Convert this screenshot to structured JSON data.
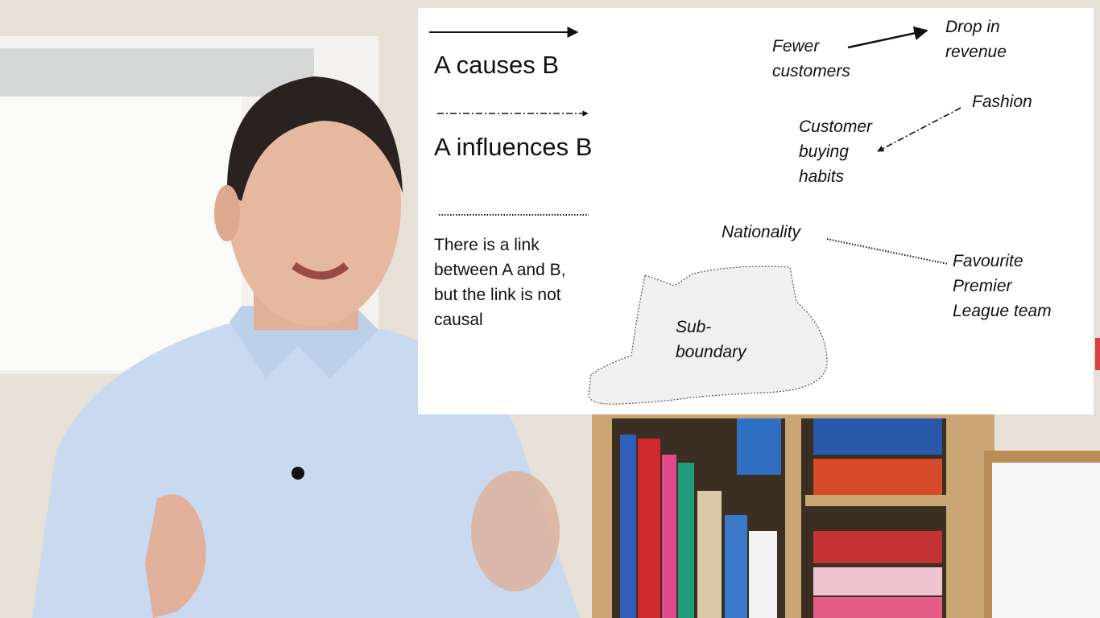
{
  "legend": {
    "causes": "A causes B",
    "influences": "A influences B",
    "link": "There is a link\nbetween A and B,\nbut the link is not\ncausal"
  },
  "examples": {
    "fewer_customers": "Fewer\ncustomers",
    "drop_in_revenue": "Drop in\nrevenue",
    "fashion": "Fashion",
    "customer_buying_habits": "Customer\nbuying\nhabits",
    "nationality": "Nationality",
    "favourite_team": "Favourite\nPremier\nLeague team",
    "sub_boundary": "Sub-\nboundary"
  },
  "colors": {
    "panel": "#ffffff",
    "ink": "#111111",
    "sub_boundary_fill": "#f0f0f0",
    "wall": "#e8e2d8",
    "shirt": "#c9d9ef",
    "shelf": "#c9a673"
  }
}
